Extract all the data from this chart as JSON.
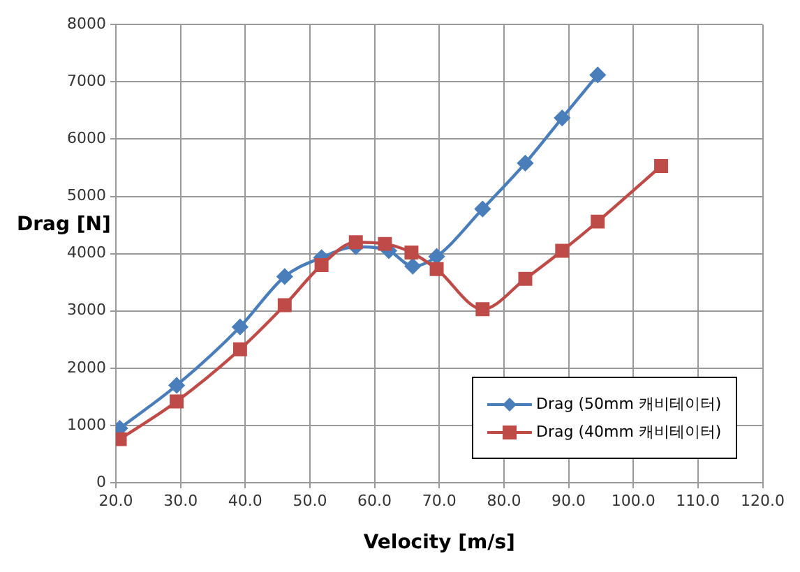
{
  "chart_data": {
    "type": "line",
    "xlabel": "Velocity [m/s]",
    "ylabel": "Drag [N]",
    "xlim": [
      20,
      120
    ],
    "xticks": [
      {
        "value": 20,
        "label": "20.0"
      },
      {
        "value": 30,
        "label": "30.0"
      },
      {
        "value": 40,
        "label": "40.0"
      },
      {
        "value": 50,
        "label": "50.0"
      },
      {
        "value": 60,
        "label": "60.0"
      },
      {
        "value": 70,
        "label": "70.0"
      },
      {
        "value": 80,
        "label": "80.0"
      },
      {
        "value": 90,
        "label": "90.0"
      },
      {
        "value": 100,
        "label": "100.0"
      },
      {
        "value": 110,
        "label": "110.0"
      },
      {
        "value": 120,
        "label": "120.0"
      }
    ],
    "ylim": [
      0,
      8000
    ],
    "yticks": [
      0,
      1000,
      2000,
      3000,
      4000,
      5000,
      6000,
      7000,
      8000
    ],
    "grid": true,
    "legend": "bottom right",
    "series": [
      {
        "name": "Drag (50mm 캐비테이터)",
        "color": "#4a7ebb",
        "marker": "diamond",
        "x": [
          20.6,
          29.4,
          39.2,
          46.1,
          51.8,
          57.1,
          62.2,
          65.9,
          69.6,
          76.7,
          83.3,
          89.0,
          94.5
        ],
        "values": [
          950,
          1700,
          2720,
          3600,
          3930,
          4120,
          4050,
          3780,
          3950,
          4780,
          5580,
          6370,
          7120
        ]
      },
      {
        "name": "Drag (40mm 캐비테이터)",
        "color": "#be4b48",
        "marker": "square",
        "x": [
          20.6,
          29.4,
          39.2,
          46.1,
          51.8,
          57.1,
          61.6,
          65.7,
          69.6,
          76.7,
          83.3,
          89.0,
          94.5,
          104.3
        ],
        "values": [
          760,
          1420,
          2330,
          3100,
          3800,
          4200,
          4170,
          4020,
          3730,
          3030,
          3560,
          4050,
          4560,
          5530
        ]
      }
    ]
  }
}
